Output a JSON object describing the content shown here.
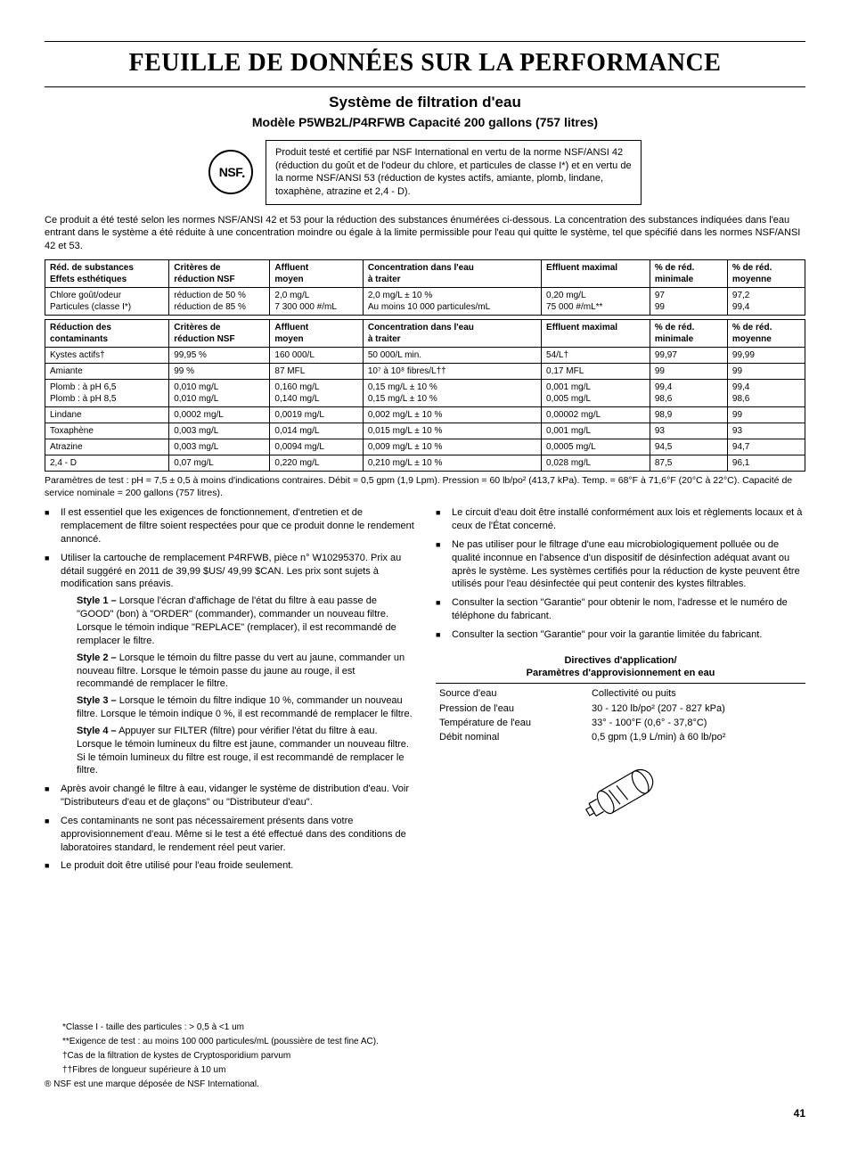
{
  "title": "FEUILLE DE DONNÉES SUR LA PERFORMANCE",
  "subtitle1": "Système de filtration d'eau",
  "subtitle2": "Modèle P5WB2L/P4RFWB Capacité 200 gallons (757 litres)",
  "nsf_label": "NSF",
  "cert_text": "Produit testé et certifié par NSF International en vertu de la norme NSF/ANSI 42 (réduction du goût et de l'odeur du chlore, et particules de classe I*) et en vertu de la norme NSF/ANSI 53 (réduction de kystes actifs, amiante, plomb, lindane, toxaphène, atrazine et 2,4 - D).",
  "intro": "Ce produit a été testé selon les normes NSF/ANSI 42 et 53 pour la réduction des substances énumérées ci-dessous. La concentration des substances indiquées dans l'eau entrant dans le système a été réduite à une concentration moindre ou égale à la limite permissible pour l'eau qui quitte le système, tel que spécifié dans les normes NSF/ANSI 42 et 53.",
  "table1": {
    "headers": [
      "Réd. de substances\nEffets esthétiques",
      "Critères de\nréduction NSF",
      "Affluent\nmoyen",
      "Concentration dans l'eau\nà traiter",
      "Effluent maximal",
      "% de réd.\nminimale",
      "% de réd.\nmoyenne"
    ],
    "rows": [
      [
        "Chlore goût/odeur\nParticules (classe I*)",
        "réduction de 50 %\nréduction de 85 %",
        "2,0 mg/L\n7 300 000 #/mL",
        "2,0 mg/L ± 10 %\nAu moins 10 000 particules/mL",
        "0,20 mg/L\n75 000 #/mL**",
        "97\n99",
        "97,2\n99,4"
      ]
    ]
  },
  "table2": {
    "headers": [
      "Réduction des\ncontaminants",
      "Critères de\nréduction NSF",
      "Affluent\nmoyen",
      "Concentration dans l'eau\nà traiter",
      "Effluent maximal",
      "% de réd.\nminimale",
      "% de réd.\nmoyenne"
    ],
    "rows": [
      [
        "Kystes actifs†",
        "99,95 %",
        "160 000/L",
        "50 000/L min.",
        "54/L†",
        "99,97",
        "99,99"
      ],
      [
        "Amiante",
        "99 %",
        "87 MFL",
        "10⁷ à 10⁸ fibres/L††",
        "0,17 MFL",
        "99",
        "99"
      ],
      [
        "Plomb : à pH 6,5\nPlomb : à pH 8,5",
        "0,010 mg/L\n0,010 mg/L",
        "0,160 mg/L\n0,140 mg/L",
        "0,15 mg/L ± 10 %\n0,15 mg/L ± 10 %",
        "0,001 mg/L\n0,005 mg/L",
        "99,4\n98,6",
        "99,4\n98,6"
      ],
      [
        "Lindane",
        "0,0002 mg/L",
        "0,0019 mg/L",
        "0,002 mg/L ± 10 %",
        "0,00002 mg/L",
        "98,9",
        "99"
      ],
      [
        "Toxaphène",
        "0,003 mg/L",
        "0,014 mg/L",
        "0,015 mg/L ± 10 %",
        "0,001 mg/L",
        "93",
        "93"
      ],
      [
        "Atrazine",
        "0,003 mg/L",
        "0,0094 mg/L",
        "0,009 mg/L ± 10 %",
        "0,0005 mg/L",
        "94,5",
        "94,7"
      ],
      [
        "2,4 - D",
        "0,07 mg/L",
        "0,220 mg/L",
        "0,210 mg/L ± 10 %",
        "0,028 mg/L",
        "87,5",
        "96,1"
      ]
    ]
  },
  "col_widths": [
    "16%",
    "13%",
    "12%",
    "23%",
    "14%",
    "10%",
    "10%"
  ],
  "test_params": "Paramètres de test : pH = 7,5 ± 0,5 à moins d'indications contraires. Débit = 0,5 gpm (1,9 Lpm). Pression = 60 lb/po² (413,7 kPa). Temp. = 68°F à 71,6°F (20°C à 22°C). Capacité de service nominale = 200 gallons (757 litres).",
  "left_bullets": [
    "Il est essentiel que les exigences de fonctionnement, d'entretien et de remplacement de filtre soient respectées pour que ce produit donne le rendement annoncé.",
    "Utiliser la cartouche de remplacement P4RFWB, pièce n° W10295370. Prix au détail suggéré en 2011 de 39,99 $US/ 49,99 $CAN. Les prix sont sujets à modification sans préavis.",
    "Après avoir changé le filtre à eau, vidanger le système de distribution d'eau. Voir \"Distributeurs d'eau et de glaçons\" ou \"Distributeur d'eau\".",
    "Ces contaminants ne sont pas nécessairement présents dans votre approvisionnement d'eau. Même si le test a été effectué dans des conditions de laboratoires standard, le rendement réel peut varier.",
    "Le produit doit être utilisé pour l'eau froide seulement."
  ],
  "styles": [
    {
      "label": "Style 1 –",
      "text": " Lorsque l'écran d'affichage de l'état du filtre à eau passe de \"GOOD\" (bon) à \"ORDER\" (commander), commander un nouveau filtre. Lorsque le témoin indique \"REPLACE\" (remplacer), il est recommandé de remplacer le filtre."
    },
    {
      "label": "Style 2 –",
      "text": " Lorsque le témoin du filtre passe du vert au jaune, commander un nouveau filtre. Lorsque le témoin passe du jaune au rouge, il est recommandé de remplacer le filtre."
    },
    {
      "label": "Style 3 –",
      "text": " Lorsque le témoin du filtre indique 10 %, commander un nouveau filtre. Lorsque le témoin indique 0 %, il est recommandé de remplacer le filtre."
    },
    {
      "label": "Style 4 –",
      "text": " Appuyer sur FILTER (filtre) pour vérifier l'état du filtre à eau. Lorsque le témoin lumineux du filtre est jaune, commander un nouveau filtre. Si le témoin lumineux du filtre est rouge, il est recommandé de remplacer le filtre."
    }
  ],
  "right_bullets": [
    "Le circuit d'eau doit être installé conformément aux lois et règlements locaux et à ceux de l'État concerné.",
    "Ne pas utiliser pour le filtrage d'une eau microbiologiquement polluée ou de qualité inconnue en l'absence d'un dispositif de désinfection adéquat avant ou après le système. Les systèmes certifiés pour la réduction de kyste peuvent être utilisés pour l'eau désinfectée qui peut contenir des kystes filtrables.",
    "Consulter la section \"Garantie\" pour obtenir le nom, l'adresse et le numéro de téléphone du fabricant.",
    "Consulter la section \"Garantie\" pour voir la garantie limitée du fabricant."
  ],
  "app_title": "Directives d'application/\nParamètres d'approvisionnement en eau",
  "app_params": [
    [
      "Source d'eau",
      "Collectivité ou puits"
    ],
    [
      "Pression de l'eau",
      "30 - 120 lb/po² (207 - 827 kPa)"
    ],
    [
      "Température de l'eau",
      "33° - 100°F (0,6° - 37,8°C)"
    ],
    [
      "Débit nominal",
      "0,5 gpm (1,9 L/min) à 60 lb/po²"
    ]
  ],
  "footnotes": [
    "*Classe I - taille des particules :  > 0,5 à <1 um",
    "**Exigence de test : au moins 100 000 particules/mL (poussière de test fine AC).",
    "†Cas de la filtration de kystes de Cryptosporidium parvum",
    "††Fibres de longueur supérieure à 10 um",
    "® NSF est une marque déposée de NSF International."
  ],
  "page_number": "41"
}
